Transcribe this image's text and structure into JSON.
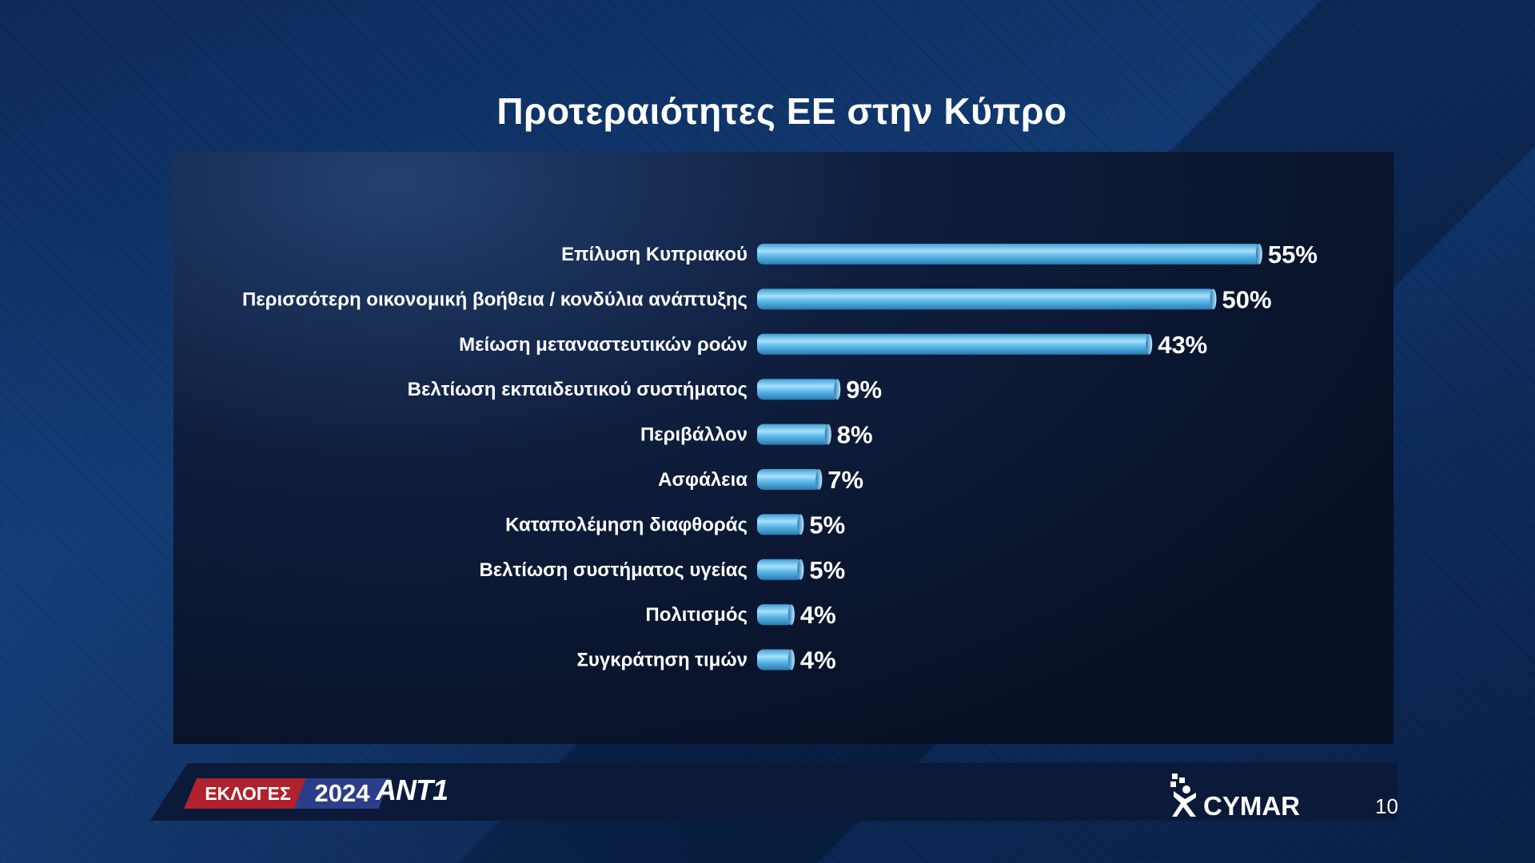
{
  "page": {
    "title": "Προτεραιότητες ΕΕ στην Κύπρο",
    "page_number": "10"
  },
  "footer": {
    "tag_elections": "ΕΚΛΟΓΕΣ",
    "tag_year": "2024",
    "channel": "ANT1",
    "pollster": "CYMAR"
  },
  "colors": {
    "bar": "#5bb8e8",
    "bar_highlight": "#a8e0fb",
    "bar_shadow": "#2a7bb0",
    "label": "#ffffff"
  },
  "chart_data": {
    "type": "bar",
    "orientation": "horizontal",
    "title": "Προτεραιότητες ΕΕ στην Κύπρο",
    "unit": "%",
    "categories": [
      "Επίλυση Κυπριακού",
      "Περισσότερη οικονομική βοήθεια / κονδύλια ανάπτυξης",
      "Μείωση μεταναστευτικών ροών",
      "Βελτίωση εκπαιδευτικού συστήματος",
      "Περιβάλλον",
      "Ασφάλεια",
      "Καταπολέμηση διαφθοράς",
      "Βελτίωση συστήματος υγείας",
      "Πολιτισμός",
      "Συγκράτηση τιμών"
    ],
    "values": [
      55,
      50,
      43,
      9,
      8,
      7,
      5,
      5,
      4,
      4
    ],
    "value_labels": [
      "55%",
      "50%",
      "43%",
      "9%",
      "8%",
      "7%",
      "5%",
      "5%",
      "4%",
      "4%"
    ],
    "grid": false,
    "legend": "none"
  }
}
